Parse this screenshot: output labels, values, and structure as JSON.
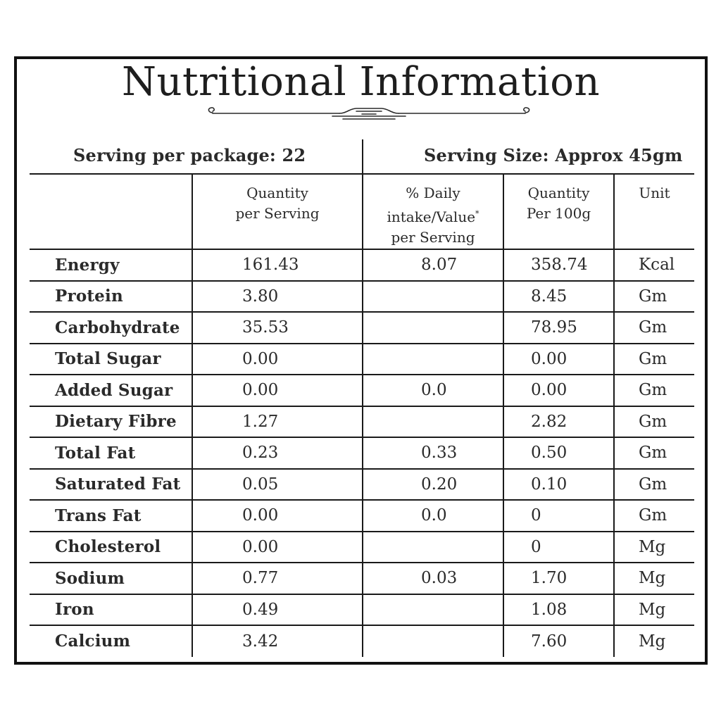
{
  "title": "Nutritional Information",
  "serving": {
    "per_package": "Serving per package: 22",
    "size": "Serving Size: Approx 45gm"
  },
  "headers": {
    "qty_per_serving_line1": "Quantity",
    "qty_per_serving_line2": "per Serving",
    "daily_line1": "% Daily",
    "daily_line2": "intake/Value",
    "daily_mark": "*",
    "daily_line3": "per Serving",
    "qty_100_line1": "Quantity",
    "qty_100_line2": "Per 100g",
    "unit": "Unit"
  },
  "rows": [
    {
      "name": "Energy",
      "qty": "161.43",
      "dv": "8.07",
      "q100": "358.74",
      "unit": "Kcal"
    },
    {
      "name": "Protein",
      "qty": "3.80",
      "dv": "",
      "q100": "8.45",
      "unit": "Gm"
    },
    {
      "name": "Carbohydrate",
      "qty": "35.53",
      "dv": "",
      "q100": "78.95",
      "unit": "Gm"
    },
    {
      "name": "Total Sugar",
      "qty": "0.00",
      "dv": "",
      "q100": "0.00",
      "unit": "Gm"
    },
    {
      "name": "Added Sugar",
      "qty": "0.00",
      "dv": "0.0",
      "q100": "0.00",
      "unit": "Gm"
    },
    {
      "name": "Dietary Fibre",
      "qty": "1.27",
      "dv": "",
      "q100": "2.82",
      "unit": "Gm"
    },
    {
      "name": "Total Fat",
      "qty": "0.23",
      "dv": "0.33",
      "q100": "0.50",
      "unit": "Gm"
    },
    {
      "name": "Saturated Fat",
      "qty": "0.05",
      "dv": "0.20",
      "q100": "0.10",
      "unit": "Gm"
    },
    {
      "name": "Trans Fat",
      "qty": "0.00",
      "dv": "0.0",
      "q100": "0",
      "unit": "Gm"
    },
    {
      "name": "Cholesterol",
      "qty": "0.00",
      "dv": "",
      "q100": "0",
      "unit": "Mg"
    },
    {
      "name": "Sodium",
      "qty": "0.77",
      "dv": "0.03",
      "q100": "1.70",
      "unit": "Mg"
    },
    {
      "name": "Iron",
      "qty": "0.49",
      "dv": "",
      "q100": "1.08",
      "unit": "Mg"
    },
    {
      "name": "Calcium",
      "qty": "3.42",
      "dv": "",
      "q100": "7.60",
      "unit": "Mg"
    }
  ],
  "colors": {
    "frame": "#111111",
    "text": "#2a2a2a",
    "background": "#ffffff"
  },
  "icons": {
    "ornament": "scroll-divider-ornament"
  }
}
